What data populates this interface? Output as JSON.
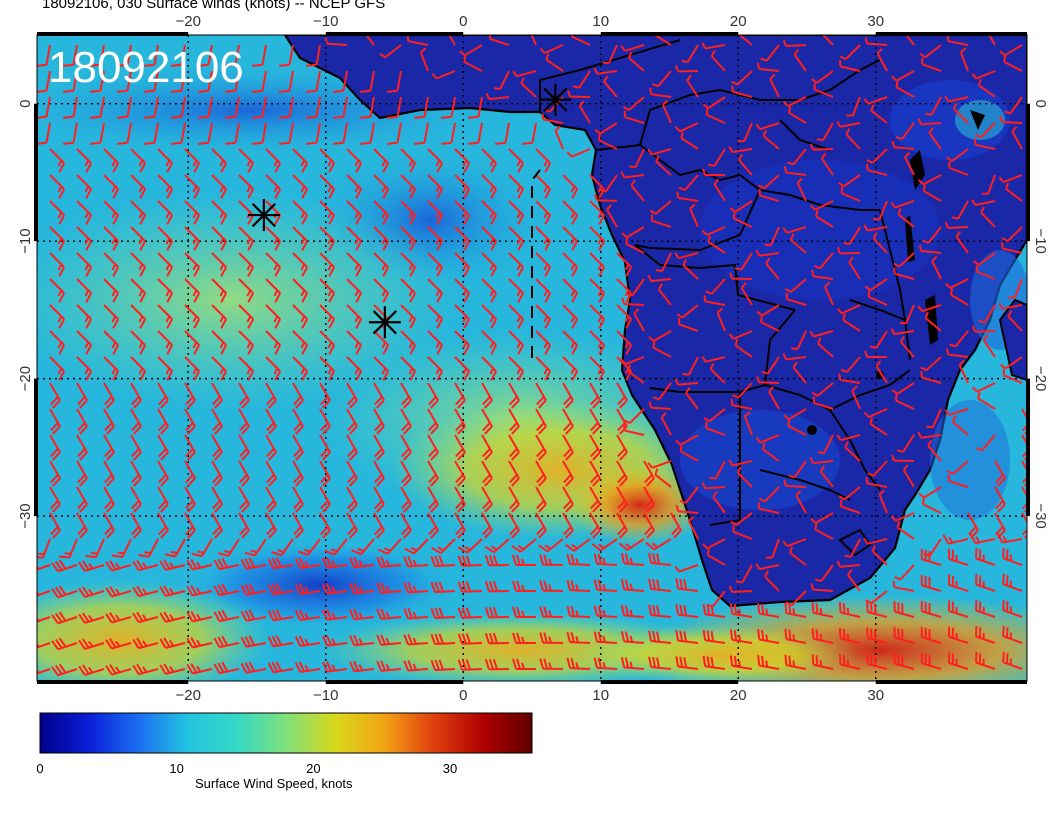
{
  "title": "18092106, 030 Surface winds (knots) -- NCEP GFS",
  "stamp": "18092106",
  "map": {
    "lon_range": [
      -31,
      41
    ],
    "lat_range": [
      5,
      -42
    ],
    "lon_ticks": [
      "−20",
      "−10",
      "0",
      "10",
      "20",
      "30"
    ],
    "lat_ticks": [
      "0",
      "−10",
      "−20",
      "−30"
    ],
    "lat_tick_values": [
      0,
      -10,
      -20,
      -30
    ],
    "lon_tick_values": [
      -20,
      -10,
      0,
      10,
      20,
      30
    ],
    "barb_color": "#ff1f1f",
    "ocean_color": "#2ab8d8",
    "land_color": "#1a2aa8"
  },
  "markers": [
    {
      "name": "storm-marker-1",
      "lon": 6.7,
      "lat": 0.3
    },
    {
      "name": "storm-marker-2",
      "lon": -14.5,
      "lat": -8.1
    },
    {
      "name": "storm-marker-3",
      "lon": -5.7,
      "lat": -15.9
    }
  ],
  "colorbar": {
    "title": "Surface Wind Speed, knots",
    "ticks": [
      "0",
      "10",
      "20",
      "30"
    ],
    "tick_values": [
      0,
      10,
      20,
      30
    ],
    "max": 36,
    "colors": [
      "#00008a",
      "#0a1ed8",
      "#1b6ef2",
      "#22c4e0",
      "#35d9c6",
      "#7fe07a",
      "#d8d81c",
      "#f2a314",
      "#e0400f",
      "#b00000",
      "#600000"
    ]
  }
}
